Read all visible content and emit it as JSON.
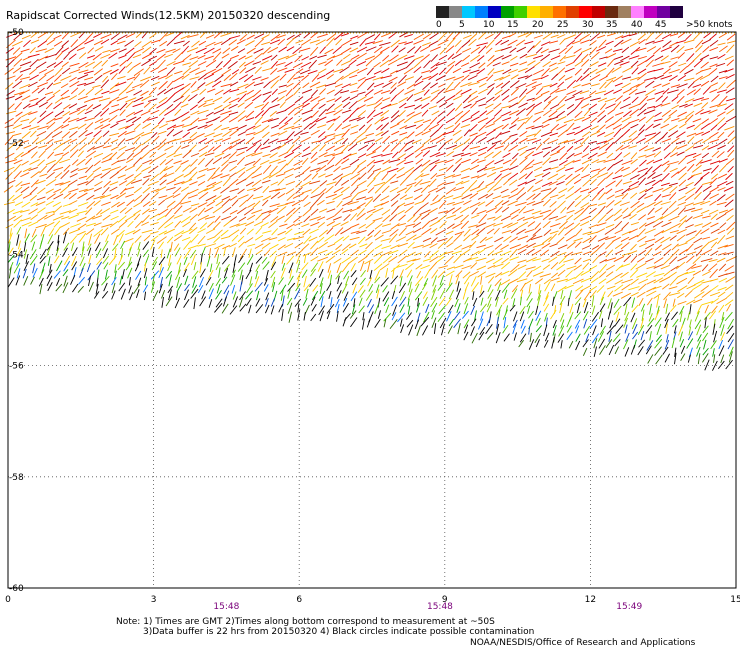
{
  "title": "Rapidscat Corrected Winds(12.5KM) 20150320 descending",
  "legend": {
    "colors": [
      "#222222",
      "#888888",
      "#00c8ff",
      "#0080ff",
      "#0000c0",
      "#00a000",
      "#40d000",
      "#ffe000",
      "#ffb000",
      "#ff7000",
      "#e04000",
      "#ff0000",
      "#c00000",
      "#6a2a10",
      "#a08060",
      "#ff80ff",
      "#c000c0",
      "#7000a0",
      "#200040"
    ],
    "labels": [
      "0",
      "5",
      "10",
      "15",
      "20",
      "25",
      "30",
      "35",
      "40",
      "45",
      ">50 knots"
    ]
  },
  "map": {
    "lat_labels": [
      "-50",
      "-52",
      "-54",
      "-56",
      "-58",
      "-60"
    ],
    "lon_labels": [
      "0",
      "3",
      "6",
      "9",
      "12",
      "15"
    ],
    "time_labels": [
      "15:48",
      "15:48",
      "15:49"
    ]
  },
  "notes": [
    "Note: 1) Times are GMT 2)Times along bottom correspond to measurement at ~50S",
    "3)Data buffer is 22 hrs from 20150320 4) Black circles indicate possible contamination"
  ],
  "credit": "NOAA/NESDIS/Office of Research and Applications"
}
